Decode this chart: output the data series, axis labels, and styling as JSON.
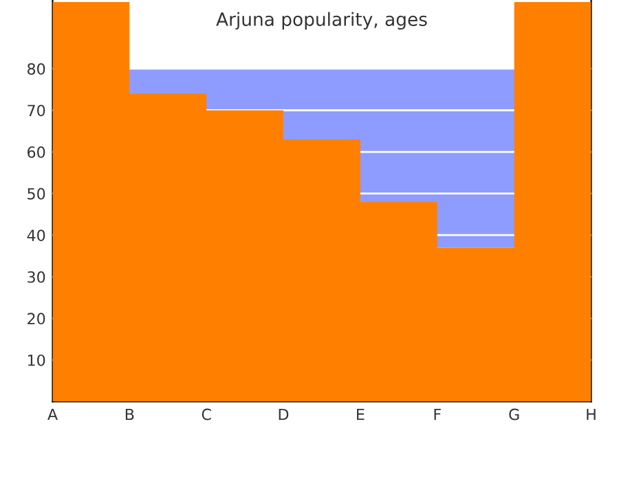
{
  "chart_data": {
    "type": "area",
    "title": "Arjuna popularity, ages",
    "categories": [
      "A",
      "B",
      "C",
      "D",
      "E",
      "F",
      "G",
      "H"
    ],
    "values": [
      96,
      74,
      70,
      63,
      48,
      37,
      96,
      96
    ],
    "color": "#ff8000",
    "ylim": [
      0,
      96.5
    ],
    "yticks": [
      10,
      20,
      30,
      40,
      50,
      60,
      70,
      80
    ],
    "bands": [
      {
        "axis": "y",
        "from": 37,
        "to": 80,
        "label": null,
        "color": "#8f9cff"
      }
    ],
    "grid": "y"
  }
}
